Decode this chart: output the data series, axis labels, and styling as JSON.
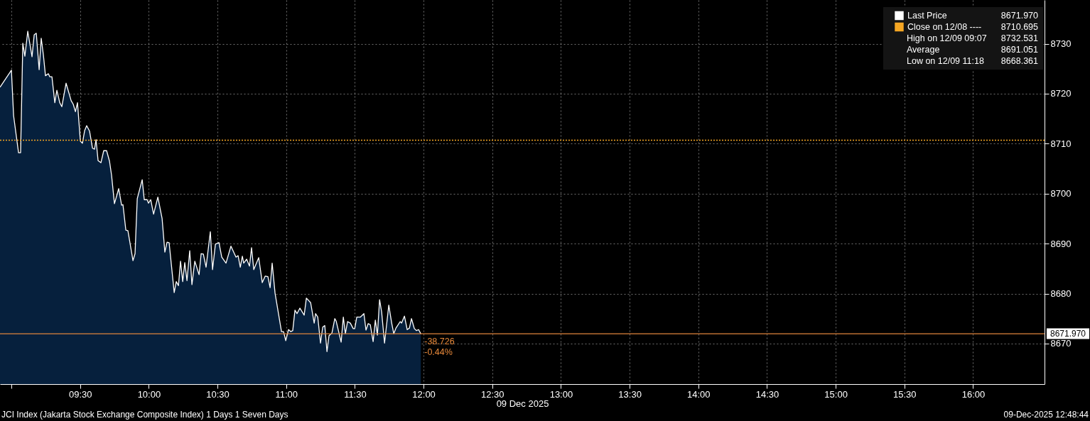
{
  "chart_data": {
    "type": "area",
    "xlabel": "09 Dec 2025",
    "series": [
      {
        "name": "Last Price",
        "color": "#ffffff",
        "x": [
          8.917,
          9.0,
          9.016,
          9.052,
          9.067,
          9.083,
          9.098,
          9.119,
          9.15,
          9.166,
          9.181,
          9.202,
          9.217,
          9.233,
          9.248,
          9.269,
          9.279,
          9.295,
          9.316,
          9.331,
          9.352,
          9.367,
          9.398,
          9.435,
          9.45,
          9.466,
          9.481,
          9.502,
          9.517,
          9.533,
          9.548,
          9.569,
          9.59,
          9.605,
          9.616,
          9.631,
          9.652,
          9.672,
          9.693,
          9.714,
          9.729,
          9.75,
          9.781,
          9.802,
          9.812,
          9.833,
          9.848,
          9.885,
          9.9,
          9.916,
          9.952,
          9.967,
          9.988,
          9.998,
          10.014,
          10.035,
          10.066,
          10.097,
          10.117,
          10.133,
          10.148,
          10.185,
          10.2,
          10.216,
          10.231,
          10.247,
          10.262,
          10.278,
          10.298,
          10.314,
          10.335,
          10.366,
          10.381,
          10.397,
          10.417,
          10.448,
          10.464,
          10.485,
          10.511,
          10.531,
          10.562,
          10.598,
          10.635,
          10.65,
          10.666,
          10.681,
          10.691,
          10.712,
          10.733,
          10.748,
          10.764,
          10.8,
          10.826,
          10.847,
          10.867,
          10.883,
          10.898,
          10.919,
          10.966,
          10.981,
          10.997,
          11.017,
          11.033,
          11.048,
          11.064,
          11.079,
          11.1,
          11.131,
          11.147,
          11.178,
          11.204,
          11.214,
          11.23,
          11.25,
          11.266,
          11.281,
          11.297,
          11.312,
          11.333,
          11.354,
          11.364,
          11.4,
          11.416,
          11.431,
          11.447,
          11.467,
          11.488,
          11.499,
          11.514,
          11.54,
          11.566,
          11.581,
          11.597,
          11.612,
          11.633,
          11.649,
          11.664,
          11.68,
          11.695,
          11.716,
          11.747,
          11.768,
          11.783,
          11.799,
          11.83,
          11.84,
          11.861,
          11.881,
          11.897,
          11.912,
          11.933,
          11.949,
          11.964,
          11.98
        ],
        "values": [
          8721.3,
          8724.7,
          8715.6,
          8708.2,
          8708.2,
          8730.1,
          8727.5,
          8732.5,
          8727.4,
          8731.8,
          8732.1,
          8724.8,
          8731.1,
          8727.7,
          8723.6,
          8724.0,
          8723.4,
          8723.4,
          8718.2,
          8720.7,
          8718.2,
          8717.4,
          8722.1,
          8718.6,
          8717.9,
          8716.4,
          8718.2,
          8710.5,
          8710.1,
          8712.6,
          8713.6,
          8712.5,
          8709.1,
          8708.9,
          8710.8,
          8706.6,
          8706.2,
          8708.6,
          8708.6,
          8706.5,
          8703.7,
          8698.0,
          8701.0,
          8697.7,
          8697.8,
          8692.7,
          8692.6,
          8686.6,
          8688.0,
          8699.0,
          8702.8,
          8698.8,
          8698.8,
          8698.1,
          8698.8,
          8695.9,
          8699.3,
          8695.0,
          8688.3,
          8690.3,
          8690.2,
          8680.2,
          8682.4,
          8681.6,
          8686.5,
          8682.4,
          8686.2,
          8682.6,
          8688.6,
          8681.8,
          8686.5,
          8683.8,
          8688.0,
          8687.9,
          8685.3,
          8692.4,
          8684.8,
          8689.9,
          8690.2,
          8687.3,
          8686.1,
          8689.5,
          8687.3,
          8687.6,
          8685.3,
          8687.5,
          8686.1,
          8686.9,
          8685.5,
          8689.2,
          8684.8,
          8687.2,
          8682.2,
          8683.5,
          8683.4,
          8681.2,
          8686.1,
          8680.1,
          8672.4,
          8672.4,
          8670.6,
          8672.8,
          8672.4,
          8672.6,
          8676.7,
          8676.0,
          8677.1,
          8675.7,
          8679.1,
          8678.2,
          8674.1,
          8676.0,
          8675.3,
          8670.1,
          8673.3,
          8673.6,
          8668.4,
          8671.6,
          8672.1,
          8675.0,
          8674.5,
          8670.3,
          8675.3,
          8672.0,
          8674.4,
          8674.1,
          8673.0,
          8673.0,
          8675.3,
          8675.3,
          8676.0,
          8672.7,
          8674.0,
          8673.8,
          8670.4,
          8674.7,
          8671.7,
          8678.8,
          8676.3,
          8670.1,
          8677.7,
          8674.1,
          8672.0,
          8673.1,
          8674.4,
          8674.1,
          8675.5,
          8672.8,
          8673.1,
          8675.0,
          8673.0,
          8672.6,
          8672.8,
          8671.97
        ]
      }
    ],
    "xlim": [
      8.917,
      16.52
    ],
    "xticks": [
      {
        "value": 9.0,
        "label": null
      },
      {
        "value": 9.5,
        "label": "09:30"
      },
      {
        "value": 10.0,
        "label": "10:00"
      },
      {
        "value": 10.5,
        "label": "10:30"
      },
      {
        "value": 11.0,
        "label": "11:00"
      },
      {
        "value": 11.5,
        "label": "11:30"
      },
      {
        "value": 12.0,
        "label": "12:00"
      },
      {
        "value": 12.5,
        "label": "12:30"
      },
      {
        "value": 13.0,
        "label": "13:00"
      },
      {
        "value": 13.5,
        "label": "13:30"
      },
      {
        "value": 14.0,
        "label": "14:00"
      },
      {
        "value": 14.5,
        "label": "14:30"
      },
      {
        "value": 15.0,
        "label": "15:00"
      },
      {
        "value": 15.5,
        "label": "15:30"
      },
      {
        "value": 16.0,
        "label": "16:00"
      }
    ],
    "ylim": [
      8661.9,
      8738.75
    ],
    "yticks": [
      8670,
      8680,
      8690,
      8700,
      8710,
      8720,
      8730
    ],
    "grid": true,
    "legend": "top right",
    "ref_lines": [
      {
        "axis": "y",
        "value": 8710.695,
        "label": "Close on 12/08 ----",
        "color": "#f5a623",
        "line_style": "dotted"
      },
      {
        "axis": "y",
        "value": 8671.97,
        "label": "8671.970",
        "color": "#e0843c",
        "line_style": "solid"
      }
    ],
    "annotations": [
      "8671.970",
      "8710.695",
      "High on 12/09 09:07 8732.531",
      "Average 8691.051",
      "Low on 12/09 11:18 8668.361",
      {
        "text": "-38.726",
        "x": 11.98,
        "y": 8671.97
      },
      {
        "text": "-0.44%",
        "x": 11.98,
        "y": 8671.97
      },
      "JCI Index (Jakarta Stock Exchange Composite Index) 1 Days 1 Seven Days",
      "09-Dec-2025 12:48:44"
    ]
  }
}
